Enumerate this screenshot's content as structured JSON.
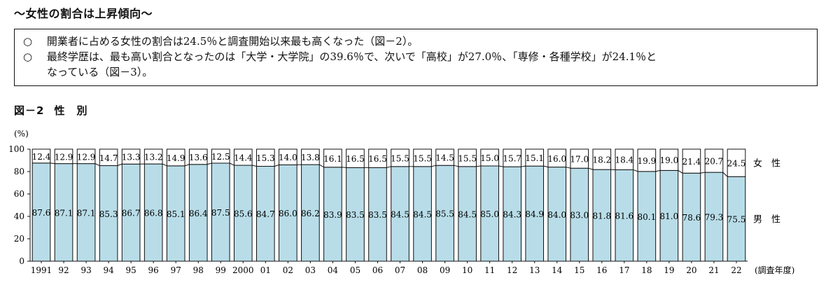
{
  "headline": "～女性の割合は上昇傾向～",
  "notes": [
    {
      "bullet": "○",
      "text": "開業者に占める女性の割合は24.5％と調査開始以来最も高くなった（図－2）。"
    },
    {
      "bullet": "○",
      "text": "最終学歴は、最も高い割合となったのは「大学・大学院」の39.6％で、次いで「高校」が27.0％、「専修・各種学校」が24.1％と",
      "continuation": "なっている（図－3）。"
    }
  ],
  "figure": {
    "label": "図－2",
    "title": "性　別"
  },
  "chart_data": {
    "type": "bar",
    "stacked": true,
    "ylabel": "(%)",
    "xlabel": "(調査年度)",
    "ylim": [
      0,
      100
    ],
    "yticks": [
      0,
      20,
      40,
      60,
      80,
      100
    ],
    "categories": [
      "1991",
      "92",
      "93",
      "94",
      "95",
      "96",
      "97",
      "98",
      "99",
      "2000",
      "01",
      "02",
      "03",
      "04",
      "05",
      "06",
      "07",
      "08",
      "09",
      "10",
      "11",
      "12",
      "13",
      "14",
      "15",
      "16",
      "17",
      "18",
      "19",
      "20",
      "21",
      "22"
    ],
    "series": [
      {
        "name": "男　性",
        "color": "#b8dde8",
        "values": [
          87.6,
          87.1,
          87.1,
          85.3,
          86.7,
          86.8,
          85.1,
          86.4,
          87.5,
          85.6,
          84.7,
          86.0,
          86.2,
          83.9,
          83.5,
          83.5,
          84.5,
          84.5,
          85.5,
          84.5,
          85.0,
          84.3,
          84.9,
          84.0,
          83.0,
          81.8,
          81.6,
          80.1,
          81.0,
          78.6,
          79.3,
          75.5
        ]
      },
      {
        "name": "女　性",
        "color": "#ffffff",
        "values": [
          12.4,
          12.9,
          12.9,
          14.7,
          13.3,
          13.2,
          14.9,
          13.6,
          12.5,
          14.4,
          15.3,
          14.0,
          13.8,
          16.1,
          16.5,
          16.5,
          15.5,
          15.5,
          14.5,
          15.5,
          15.0,
          15.7,
          15.1,
          16.0,
          17.0,
          18.2,
          18.4,
          19.9,
          19.0,
          21.4,
          20.7,
          24.5
        ]
      }
    ]
  }
}
